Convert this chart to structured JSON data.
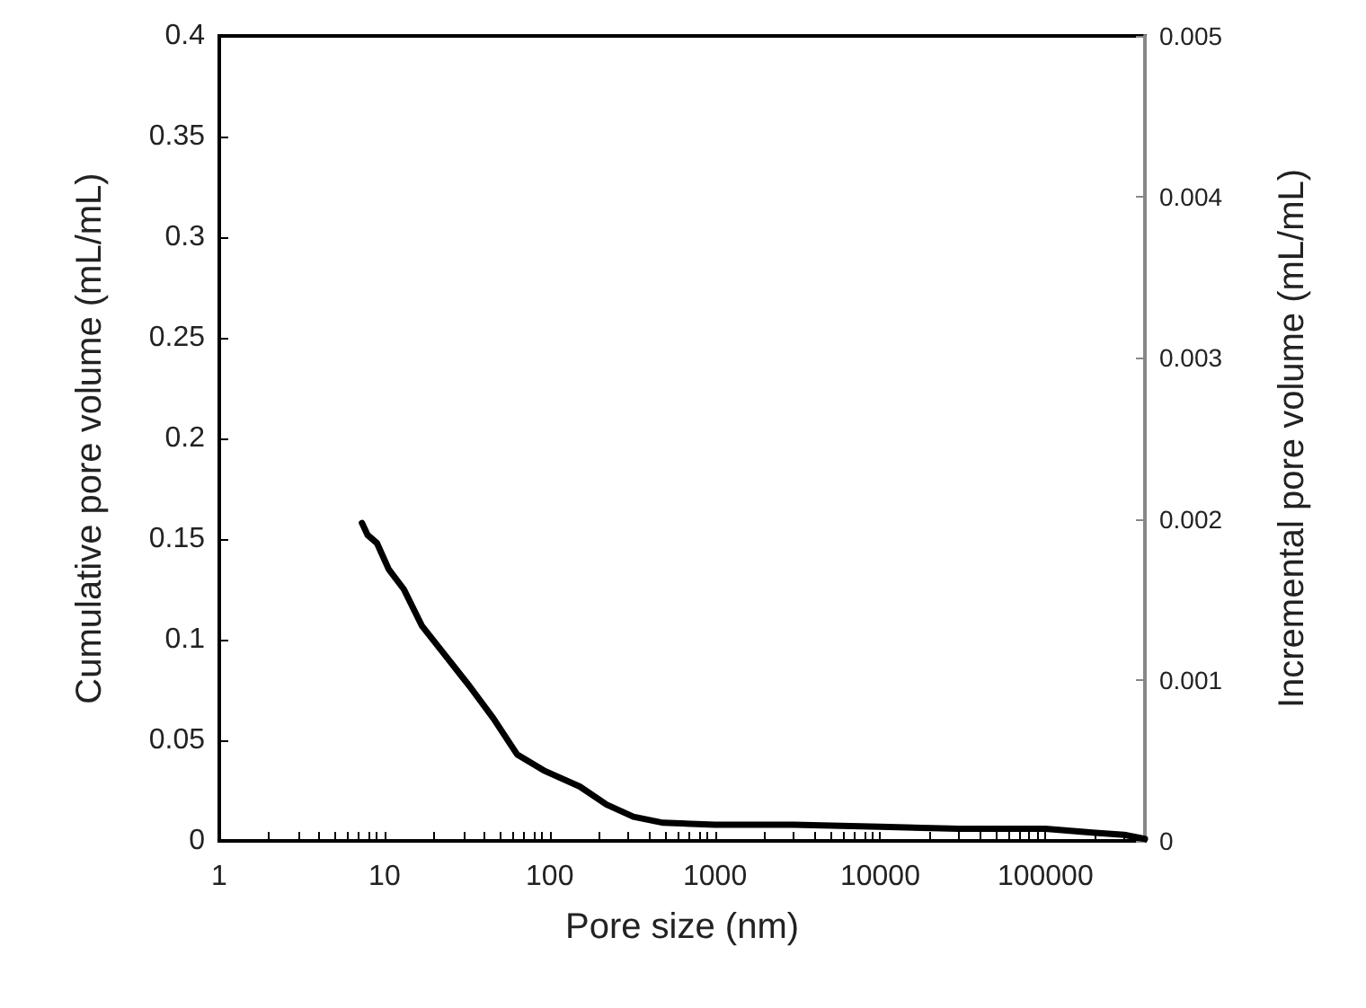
{
  "chart_data": {
    "type": "line",
    "xlabel": "Pore size (nm)",
    "ylabel": "Cumulative pore volume (mL/mL)",
    "y2label": "Incremental pore volume (mL/mL)",
    "log": "x",
    "grid": false,
    "marker": "none",
    "line_style": "solid",
    "xlim": [
      1,
      400000
    ],
    "xticks": [
      1,
      10,
      100,
      1000,
      10000,
      100000
    ],
    "ylim": [
      0,
      0.4
    ],
    "yticks": [
      0,
      0.05,
      0.1,
      0.15,
      0.2,
      0.25,
      0.3,
      0.35,
      0.4
    ],
    "y2lim": [
      0,
      0.005
    ],
    "y2ticks": [
      0,
      0.001,
      0.002,
      0.003,
      0.004,
      0.005
    ],
    "series": [
      {
        "color": "#000000",
        "x": [
          7.3,
          7.9,
          9.0,
          10.6,
          13.1,
          16.8,
          23.4,
          32.6,
          45.5,
          63.4,
          92,
          152,
          221,
          321,
          486,
          1000,
          3000,
          10000,
          30000,
          100000,
          200000,
          300000,
          400000
        ],
        "values": [
          0.158,
          0.152,
          0.148,
          0.135,
          0.125,
          0.107,
          0.092,
          0.077,
          0.061,
          0.043,
          0.035,
          0.027,
          0.018,
          0.012,
          0.009,
          0.008,
          0.008,
          0.007,
          0.006,
          0.006,
          0.004,
          0.003,
          0.001
        ]
      }
    ]
  }
}
